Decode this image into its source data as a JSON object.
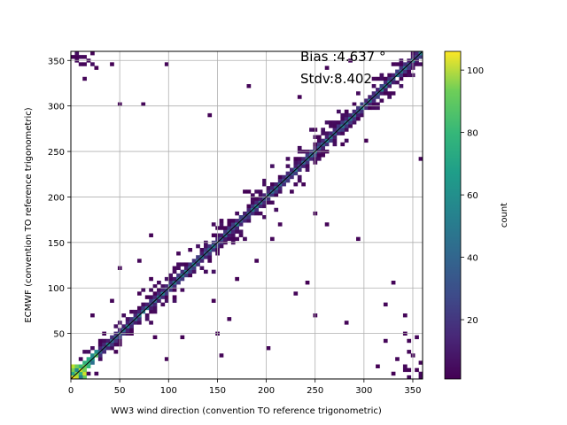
{
  "chart_data": {
    "type": "heatmap",
    "xlabel": "WW3 wind direction (convention TO reference trigonometric)",
    "ylabel": "ECMWF (convention TO reference trigonometric)",
    "xlim": [
      0,
      360
    ],
    "ylim": [
      0,
      360
    ],
    "x_ticks": [
      0,
      50,
      100,
      150,
      200,
      250,
      300,
      350
    ],
    "y_ticks": [
      50,
      100,
      150,
      200,
      250,
      300,
      350
    ],
    "grid": true,
    "bin_width_deg": 4,
    "diagonal_line": true,
    "colormap": "viridis",
    "colorbar": {
      "label": "count",
      "min": 1,
      "max": 106,
      "ticks": [
        20,
        40,
        60,
        80,
        100
      ]
    },
    "annotations": [
      "Bias :4.637 °",
      "Stdv:8.402"
    ],
    "density_pattern": {
      "description": "counts concentrated along the y = x diagonal, decaying away from it; sparse outliers elsewhere; corners (0,360) and (360,0) populated due to angle wrap-around",
      "peak_count_on_diagonal": 106
    },
    "outlier_points": [
      [
        5,
        355
      ],
      [
        10,
        345
      ],
      [
        15,
        330
      ],
      [
        25,
        340
      ],
      [
        42,
        345
      ],
      [
        50,
        300
      ],
      [
        75,
        300
      ],
      [
        98,
        345
      ],
      [
        140,
        290
      ],
      [
        180,
        320
      ],
      [
        235,
        310
      ],
      [
        262,
        340
      ],
      [
        310,
        330
      ],
      [
        285,
        350
      ],
      [
        272,
        270
      ],
      [
        300,
        263
      ],
      [
        358,
        240
      ],
      [
        225,
        205
      ],
      [
        240,
        235
      ],
      [
        248,
        180
      ],
      [
        262,
        170
      ],
      [
        295,
        155
      ],
      [
        330,
        105
      ],
      [
        345,
        42
      ],
      [
        340,
        70
      ],
      [
        350,
        25
      ],
      [
        355,
        10
      ],
      [
        330,
        5
      ],
      [
        320,
        40
      ],
      [
        230,
        95
      ],
      [
        200,
        35
      ],
      [
        155,
        25
      ],
      [
        162,
        65
      ],
      [
        145,
        85
      ],
      [
        115,
        45
      ],
      [
        85,
        45
      ],
      [
        80,
        158
      ],
      [
        70,
        130
      ],
      [
        50,
        120
      ],
      [
        40,
        85
      ],
      [
        20,
        70
      ],
      [
        60,
        75
      ],
      [
        28,
        35
      ],
      [
        98,
        22
      ],
      [
        150,
        48
      ],
      [
        168,
        110
      ],
      [
        190,
        130
      ],
      [
        205,
        155
      ],
      [
        212,
        168
      ],
      [
        210,
        210
      ],
      [
        240,
        105
      ],
      [
        250,
        68
      ],
      [
        280,
        60
      ],
      [
        360,
        65
      ],
      [
        322,
        80
      ],
      [
        340,
        50
      ],
      [
        345,
        30
      ],
      [
        355,
        45
      ],
      [
        335,
        20
      ],
      [
        315,
        12
      ]
    ]
  }
}
